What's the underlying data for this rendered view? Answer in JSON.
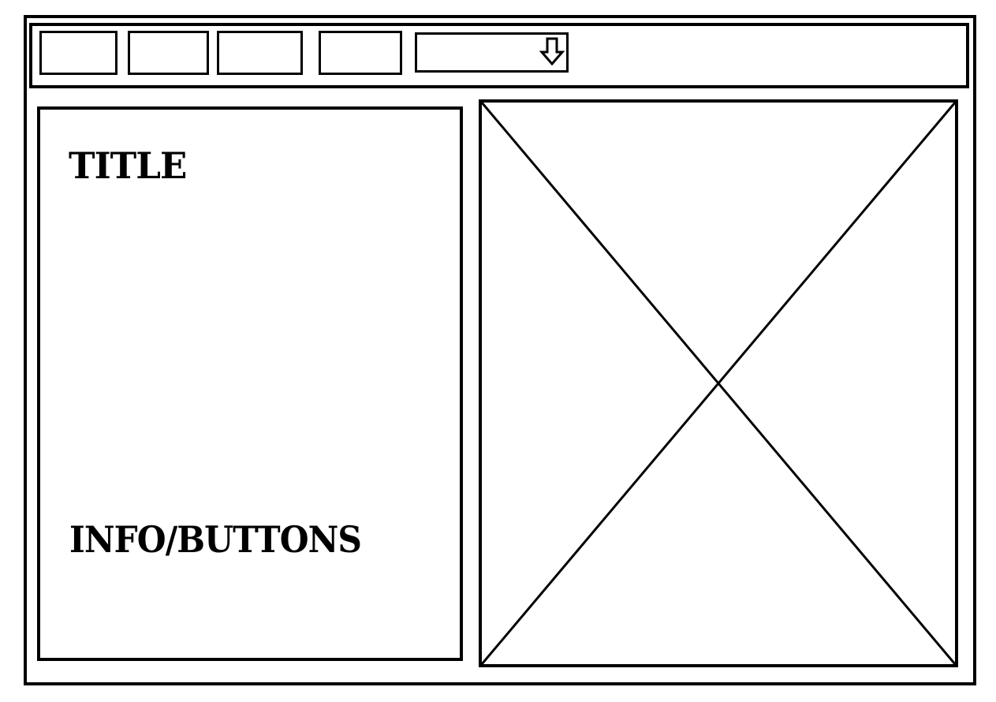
{
  "left_panel": {
    "title": "TITLE",
    "info": "INFO/BUTTONS"
  },
  "toolbar": {
    "buttons": [
      "",
      "",
      "",
      ""
    ],
    "dropdown": {
      "value": "",
      "icon": "down-arrow-icon"
    }
  },
  "image_placeholder": {
    "icon": "image-placeholder-x"
  },
  "colors": {
    "stroke": "#000000",
    "background": "#ffffff"
  }
}
